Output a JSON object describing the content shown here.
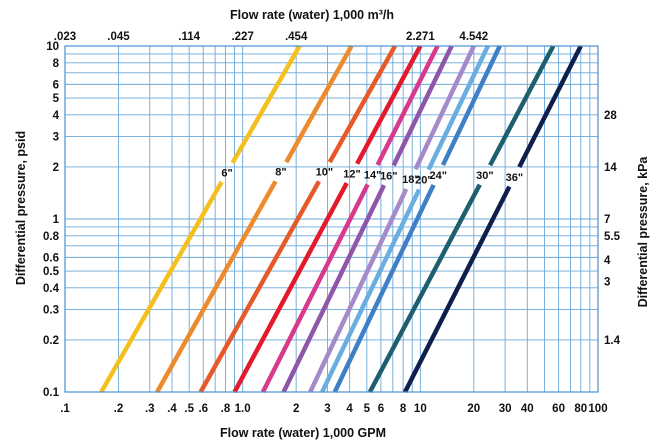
{
  "chart_data": {
    "type": "line",
    "scale": "log-log",
    "title_top": "Flow rate (water) 1,000 m³/h",
    "xlabel": "Flow rate (water) 1,000 GPM",
    "ylabel_left": "Differential pressure, psid",
    "ylabel_right": "Differential pressure, kPa",
    "xlim": [
      0.1,
      100
    ],
    "ylim": [
      0.1,
      10
    ],
    "x_ticks": [
      {
        "v": 0.1,
        "t": ".1"
      },
      {
        "v": 0.2,
        "t": ".2"
      },
      {
        "v": 0.3,
        "t": ".3"
      },
      {
        "v": 0.4,
        "t": ".4"
      },
      {
        "v": 0.5,
        "t": ".5"
      },
      {
        "v": 0.6,
        "t": ".6"
      },
      {
        "v": 0.8,
        "t": ".8"
      },
      {
        "v": 1.0,
        "t": "1.0"
      },
      {
        "v": 2,
        "t": "2"
      },
      {
        "v": 3,
        "t": "3"
      },
      {
        "v": 4,
        "t": "4"
      },
      {
        "v": 5,
        "t": "5"
      },
      {
        "v": 6,
        "t": "6"
      },
      {
        "v": 8,
        "t": "8"
      },
      {
        "v": 10,
        "t": "10"
      },
      {
        "v": 20,
        "t": "20"
      },
      {
        "v": 30,
        "t": "30"
      },
      {
        "v": 40,
        "t": "40"
      },
      {
        "v": 60,
        "t": "60"
      },
      {
        "v": 80,
        "t": "80"
      },
      {
        "v": 100,
        "t": "100"
      }
    ],
    "top_ticks": [
      {
        "v": 0.1,
        "t": ".023"
      },
      {
        "v": 0.2,
        "t": ".045"
      },
      {
        "v": 0.5,
        "t": ".114"
      },
      {
        "v": 1.0,
        "t": ".227"
      },
      {
        "v": 2,
        "t": ".454"
      },
      {
        "v": 10,
        "t": "2.271"
      },
      {
        "v": 20,
        "t": "4.542"
      }
    ],
    "y_ticks": [
      {
        "v": 0.1,
        "t": "0.1"
      },
      {
        "v": 0.2,
        "t": "0.2"
      },
      {
        "v": 0.3,
        "t": "0.3"
      },
      {
        "v": 0.4,
        "t": "0.4"
      },
      {
        "v": 0.5,
        "t": "0.5"
      },
      {
        "v": 0.6,
        "t": "0.6"
      },
      {
        "v": 0.8,
        "t": "0.8"
      },
      {
        "v": 1,
        "t": "1"
      },
      {
        "v": 2,
        "t": "2"
      },
      {
        "v": 3,
        "t": "3"
      },
      {
        "v": 4,
        "t": "4"
      },
      {
        "v": 5,
        "t": "5"
      },
      {
        "v": 6,
        "t": "6"
      },
      {
        "v": 8,
        "t": "8"
      },
      {
        "v": 10,
        "t": "10"
      }
    ],
    "right_ticks": [
      {
        "v": 0.2,
        "t": "1.4"
      },
      {
        "v": 0.435,
        "t": "3"
      },
      {
        "v": 0.58,
        "t": "4"
      },
      {
        "v": 0.8,
        "t": "5.5"
      },
      {
        "v": 1.0,
        "t": "7"
      },
      {
        "v": 2.0,
        "t": "14"
      },
      {
        "v": 4.0,
        "t": "28"
      }
    ],
    "x_grid": [
      0.1,
      0.2,
      0.3,
      0.4,
      0.5,
      0.6,
      0.7,
      0.8,
      0.9,
      1,
      2,
      3,
      4,
      5,
      6,
      7,
      8,
      9,
      10,
      20,
      30,
      40,
      50,
      60,
      70,
      80,
      90,
      100
    ],
    "y_grid": [
      0.1,
      0.2,
      0.3,
      0.4,
      0.5,
      0.6,
      0.7,
      0.8,
      0.9,
      1,
      2,
      3,
      4,
      5,
      6,
      7,
      8,
      9,
      10
    ],
    "series": [
      {
        "name": "6\"",
        "color": "#f4c01e",
        "x": [
          0.16,
          2.09
        ],
        "y": [
          0.1,
          10
        ],
        "label_at": {
          "x": 1.0,
          "y": 1.65
        }
      },
      {
        "name": "8\"",
        "color": "#ec8a2c",
        "x": [
          0.33,
          4.1
        ],
        "y": [
          0.1,
          10
        ],
        "label_at": {
          "x": 2.05,
          "y": 1.65
        }
      },
      {
        "name": "10\"",
        "color": "#e65a2a",
        "x": [
          0.58,
          7.2
        ],
        "y": [
          0.1,
          10
        ],
        "label_at": {
          "x": 3.6,
          "y": 1.65
        }
      },
      {
        "name": "12\"",
        "color": "#e3192c",
        "x": [
          0.9,
          10
        ],
        "y": [
          0.1,
          10
        ],
        "label_at": {
          "x": 5.0,
          "y": 1.65
        }
      },
      {
        "name": "14\"",
        "color": "#d7398d",
        "x": [
          1.3,
          12.5
        ],
        "y": [
          0.1,
          10
        ],
        "label_at": {
          "x": 6.4,
          "y": 1.65
        }
      },
      {
        "name": "16\"",
        "color": "#8e56a8",
        "x": [
          1.7,
          15
        ],
        "y": [
          0.1,
          10
        ],
        "label_at": {
          "x": 7.8,
          "y": 1.65
        }
      },
      {
        "name": "18\"",
        "color": "#a48ac8",
        "x": [
          2.4,
          20
        ],
        "y": [
          0.1,
          10
        ],
        "label_at": {
          "x": 9.4,
          "y": 1.65
        }
      },
      {
        "name": "20\"",
        "color": "#6aaee0",
        "x": [
          2.8,
          24
        ],
        "y": [
          0.1,
          10
        ],
        "label_at": {
          "x": 11.0,
          "y": 1.65
        }
      },
      {
        "name": "24\"",
        "color": "#3f7fc6",
        "x": [
          3.3,
          28
        ],
        "y": [
          0.1,
          10
        ],
        "label_at": {
          "x": 15.0,
          "y": 1.65
        }
      },
      {
        "name": "30\"",
        "color": "#1d5f6e",
        "x": [
          5.2,
          56
        ],
        "y": [
          0.1,
          10
        ],
        "label_at": {
          "x": 27.0,
          "y": 1.65
        }
      },
      {
        "name": "36\"",
        "color": "#0f1f4c",
        "x": [
          8.2,
          80
        ],
        "y": [
          0.1,
          10
        ],
        "label_at": {
          "x": 38.0,
          "y": 1.65
        }
      }
    ]
  }
}
